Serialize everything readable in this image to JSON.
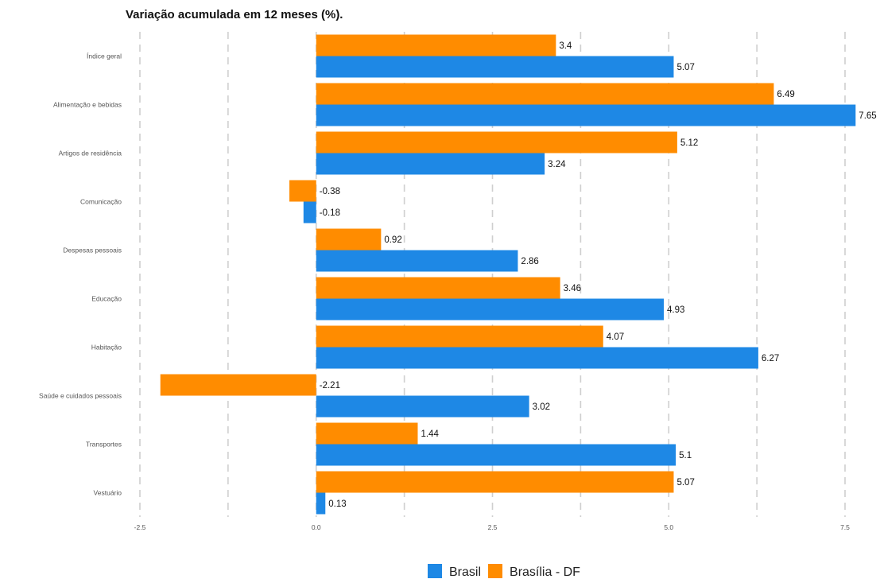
{
  "chart_data": {
    "type": "bar",
    "orientation": "horizontal",
    "title": "Variação acumulada em 12 meses (%).",
    "xlabel": "",
    "ylabel": "",
    "xlim": [
      -2.5,
      7.9
    ],
    "xticks": [
      -2.5,
      0.0,
      2.5,
      5.0,
      7.5
    ],
    "xtick_labels": [
      "-2.5",
      "0.0",
      "2.5",
      "5.0",
      "7.5"
    ],
    "grid": "vertical dashed",
    "legend_position": "bottom",
    "categories": [
      "Índice geral",
      "Alimentação e bebidas",
      "Artigos de residência",
      "Comunicação",
      "Despesas pessoais",
      "Educação",
      "Habitação",
      "Saúde e cuidados pessoais",
      "Transportes",
      "Vestuário"
    ],
    "series": [
      {
        "name": "Brasília - DF",
        "color": "#ff8c00",
        "values": [
          3.4,
          6.49,
          5.12,
          -0.38,
          0.92,
          3.46,
          4.07,
          -2.21,
          1.44,
          5.07
        ],
        "labels": [
          "3.4",
          "6.49",
          "5.12",
          "-0.38",
          "0.92",
          "3.46",
          "4.07",
          "-2.21",
          "1.44",
          "5.07"
        ]
      },
      {
        "name": "Brasil",
        "color": "#1e88e5",
        "values": [
          5.07,
          7.65,
          3.24,
          -0.18,
          2.86,
          4.93,
          6.27,
          3.02,
          5.1,
          0.13
        ],
        "labels": [
          "5.07",
          "7.65",
          "3.24",
          "-0.18",
          "2.86",
          "4.93",
          "6.27",
          "3.02",
          "5.1",
          "0.13"
        ]
      }
    ],
    "legend": [
      {
        "name": "Brasil",
        "color": "#1e88e5"
      },
      {
        "name": "Brasília - DF",
        "color": "#ff8c00"
      }
    ]
  }
}
